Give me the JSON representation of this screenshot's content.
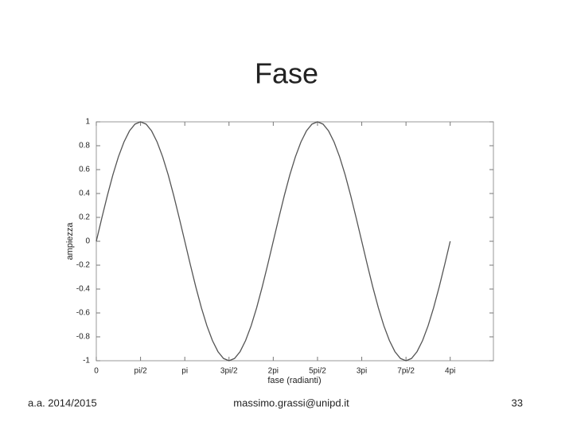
{
  "title": "Fase",
  "chart_data": {
    "type": "line",
    "xlabel": "fase (radianti)",
    "ylabel": "ampiezza",
    "x": [
      0,
      0.196,
      0.393,
      0.589,
      0.785,
      0.982,
      1.178,
      1.374,
      1.571,
      1.767,
      1.963,
      2.16,
      2.356,
      2.553,
      2.749,
      2.945,
      3.142,
      3.338,
      3.534,
      3.731,
      3.927,
      4.123,
      4.32,
      4.516,
      4.712,
      4.909,
      5.105,
      5.301,
      5.498,
      5.694,
      5.89,
      6.087,
      6.283,
      6.48,
      6.676,
      6.872,
      7.069,
      7.265,
      7.461,
      7.658,
      7.854,
      8.05,
      8.247,
      8.443,
      8.639,
      8.836,
      9.032,
      9.228,
      9.425,
      9.621,
      9.817,
      10.014,
      10.21,
      10.407,
      10.603,
      10.799,
      10.996,
      11.192,
      11.388,
      11.585,
      11.781,
      11.977,
      12.174,
      12.37,
      12.566
    ],
    "series": [
      {
        "color": "#555555",
        "values": [
          0,
          0.195,
          0.383,
          0.556,
          0.707,
          0.831,
          0.924,
          0.981,
          1,
          0.981,
          0.924,
          0.831,
          0.707,
          0.556,
          0.383,
          0.195,
          0,
          -0.195,
          -0.383,
          -0.556,
          -0.707,
          -0.831,
          -0.924,
          -0.981,
          -1,
          -0.981,
          -0.924,
          -0.831,
          -0.707,
          -0.556,
          -0.383,
          -0.195,
          0,
          0.195,
          0.383,
          0.556,
          0.707,
          0.831,
          0.924,
          0.981,
          1,
          0.981,
          0.924,
          0.831,
          0.707,
          0.556,
          0.383,
          0.195,
          0,
          -0.195,
          -0.383,
          -0.556,
          -0.707,
          -0.831,
          -0.924,
          -0.981,
          -1,
          -0.981,
          -0.924,
          -0.831,
          -0.707,
          -0.556,
          -0.383,
          -0.195,
          0
        ]
      }
    ],
    "xlim": [
      0,
      14.1
    ],
    "xticks": [
      0,
      {
        "value": 1.571,
        "label": "pi/2"
      },
      {
        "value": 3.142,
        "label": "pi"
      },
      {
        "value": 4.712,
        "label": "3pi/2"
      },
      {
        "value": 6.283,
        "label": "2pi"
      },
      {
        "value": 7.854,
        "label": "5pi/2"
      },
      {
        "value": 9.425,
        "label": "3pi"
      },
      {
        "value": 10.996,
        "label": "7pi/2"
      },
      {
        "value": 12.566,
        "label": "4pi"
      }
    ],
    "ylim": [
      -1,
      1
    ],
    "yticks": [
      -1,
      -0.8,
      -0.6,
      -0.4,
      -0.2,
      0,
      0.2,
      0.4,
      0.6,
      0.8,
      1
    ]
  },
  "footer": {
    "left": "a.a. 2014/2015",
    "center": "massimo.grassi@unipd.it",
    "right": "33"
  }
}
